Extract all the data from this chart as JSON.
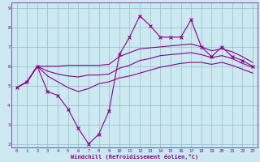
{
  "xlabel": "Windchill (Refroidissement éolien,°C)",
  "background_color": "#cce8f0",
  "line_color": "#880088",
  "grid_color": "#99bbcc",
  "spine_color": "#8844aa",
  "tick_color": "#880088",
  "xlabel_color": "#880088",
  "x_hours": [
    0,
    1,
    2,
    3,
    4,
    5,
    6,
    7,
    8,
    9,
    10,
    11,
    12,
    13,
    14,
    15,
    16,
    17,
    18,
    19,
    20,
    21,
    22,
    23
  ],
  "y_spike": [
    4.9,
    5.2,
    6.0,
    4.7,
    4.5,
    3.8,
    2.8,
    2.0,
    2.5,
    3.7,
    6.6,
    7.5,
    8.6,
    8.1,
    7.5,
    7.5,
    7.5,
    8.4,
    7.0,
    6.5,
    7.0,
    6.5,
    6.3,
    6.0
  ],
  "y_top": [
    4.9,
    5.2,
    6.0,
    6.0,
    6.0,
    6.05,
    6.05,
    6.05,
    6.05,
    6.1,
    6.5,
    6.7,
    6.9,
    6.95,
    7.0,
    7.05,
    7.1,
    7.15,
    7.0,
    6.8,
    6.9,
    6.75,
    6.5,
    6.2
  ],
  "y_mid": [
    4.9,
    5.2,
    6.0,
    5.75,
    5.6,
    5.5,
    5.45,
    5.55,
    5.55,
    5.6,
    5.9,
    6.05,
    6.3,
    6.4,
    6.55,
    6.6,
    6.65,
    6.7,
    6.6,
    6.45,
    6.55,
    6.4,
    6.15,
    5.95
  ],
  "y_bot": [
    4.9,
    5.2,
    6.0,
    5.5,
    5.2,
    4.9,
    4.7,
    4.85,
    5.1,
    5.2,
    5.4,
    5.5,
    5.65,
    5.8,
    5.95,
    6.05,
    6.15,
    6.2,
    6.2,
    6.1,
    6.2,
    6.05,
    5.85,
    5.65
  ],
  "ylim": [
    1.8,
    9.3
  ],
  "xlim": [
    -0.5,
    23.5
  ],
  "yticks": [
    2,
    3,
    4,
    5,
    6,
    7,
    8,
    9
  ],
  "xticks": [
    0,
    1,
    2,
    3,
    4,
    5,
    6,
    7,
    8,
    9,
    10,
    11,
    12,
    13,
    14,
    15,
    16,
    17,
    18,
    19,
    20,
    21,
    22,
    23
  ]
}
